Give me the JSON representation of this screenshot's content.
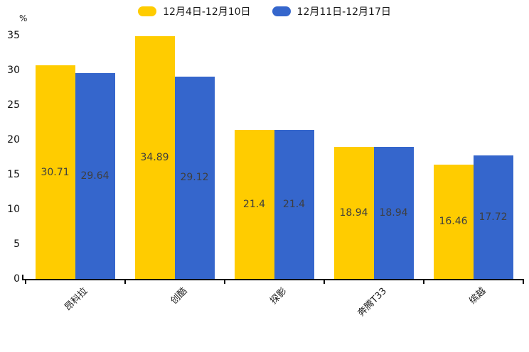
{
  "chart_data": {
    "type": "bar",
    "title": "",
    "xlabel": "",
    "ylabel": "%",
    "categories": [
      "昂科拉",
      "创酷",
      "探影",
      "奔腾T33",
      "缤越"
    ],
    "series": [
      {
        "name": "12月4日-12月10日",
        "color": "#FFCC00",
        "values": [
          30.71,
          34.89,
          21.4,
          18.94,
          16.46
        ]
      },
      {
        "name": "12月11日-12月17日",
        "color": "#3566CC",
        "values": [
          29.64,
          29.12,
          21.4,
          18.94,
          17.72
        ]
      }
    ],
    "yticks": [
      0,
      5,
      10,
      15,
      20,
      25,
      30,
      35
    ],
    "ylim": [
      0,
      35
    ],
    "grid": false,
    "legend_position": "top",
    "value_label_position": "inside-middle",
    "x_label_rotation_deg": -45
  }
}
